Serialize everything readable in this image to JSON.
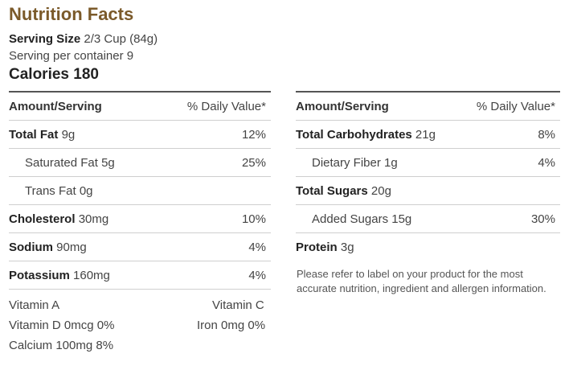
{
  "title": "Nutrition Facts",
  "serving": {
    "size_label": "Serving Size",
    "size_value": "2/3 Cup (84g)",
    "per_container": "Serving per container 9"
  },
  "calories": "Calories 180",
  "left_table": {
    "header": {
      "label": "Amount/Serving",
      "pct": "% Daily Value*"
    },
    "rows": [
      {
        "name": "Total Fat",
        "amount": "9g",
        "pct": "12%"
      },
      {
        "name": "Saturated Fat",
        "amount": "5g",
        "pct": "25%"
      },
      {
        "name": "Trans Fat",
        "amount": "0g",
        "pct": ""
      },
      {
        "name": "Cholesterol",
        "amount": "30mg",
        "pct": "10%"
      },
      {
        "name": "Sodium",
        "amount": "90mg",
        "pct": "4%"
      },
      {
        "name": "Potassium",
        "amount": "160mg",
        "pct": "4%"
      }
    ]
  },
  "vitamins": {
    "vitamin_a": "Vitamin A",
    "vitamin_c": "Vitamin C",
    "vitamin_d": "Vitamin D 0mcg 0%",
    "iron": "Iron 0mg 0%",
    "calcium": "Calcium 100mg 8%"
  },
  "right_table": {
    "header": {
      "label": "Amount/Serving",
      "pct": "% Daily Value*"
    },
    "rows": [
      {
        "name": "Total Carbohydrates",
        "amount": "21g",
        "pct": "8%"
      },
      {
        "name": "Dietary Fiber",
        "amount": "1g",
        "pct": "4%"
      },
      {
        "name": "Total Sugars",
        "amount": "20g",
        "pct": ""
      },
      {
        "name": "Added Sugars",
        "amount": "15g",
        "pct": "30%"
      },
      {
        "name": "Protein",
        "amount": "3g",
        "pct": ""
      }
    ]
  },
  "note": "Please refer to label on your product for the most accurate nutrition, ingredient and allergen information."
}
